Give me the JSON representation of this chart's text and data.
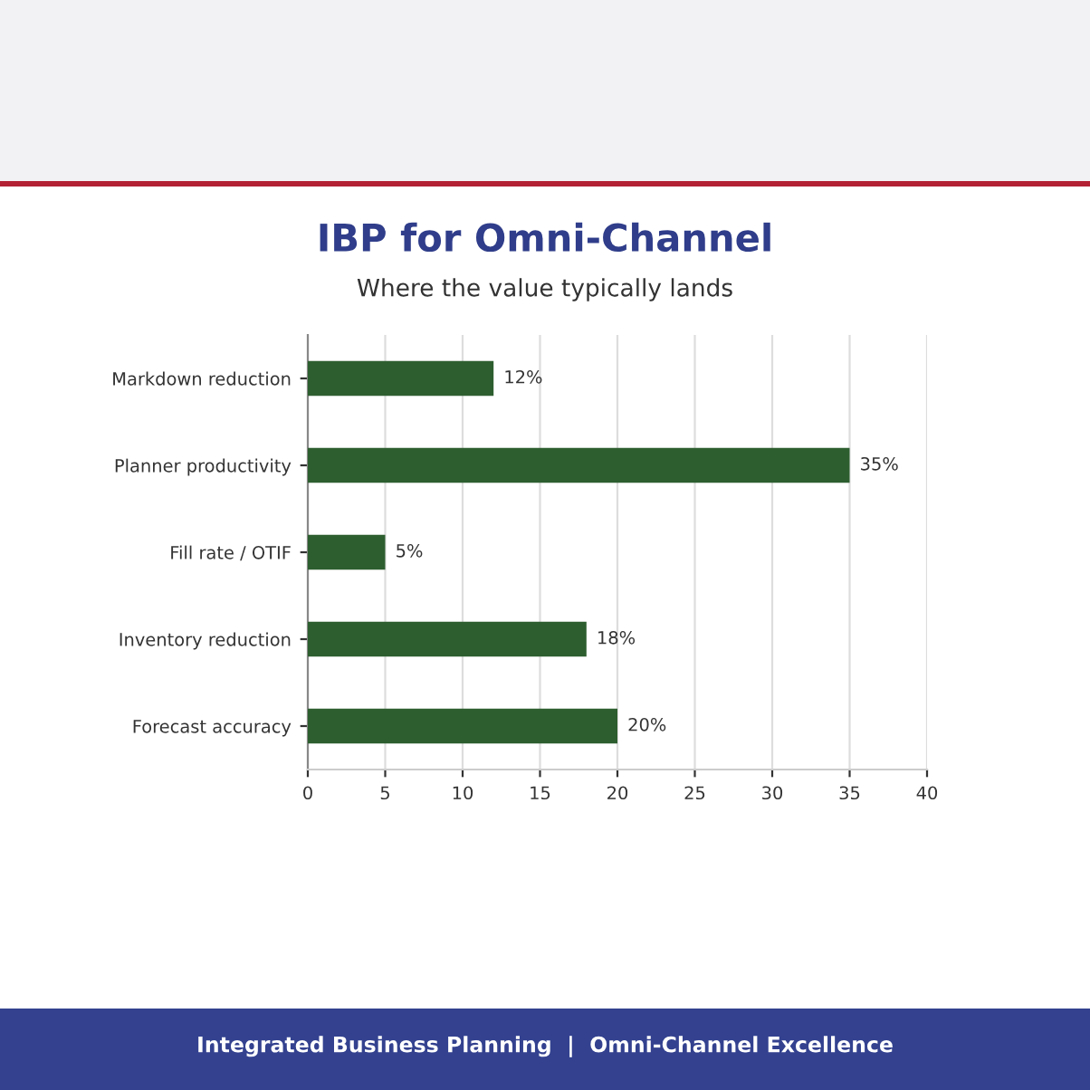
{
  "chart_data": {
    "type": "bar",
    "orientation": "horizontal",
    "title": "IBP for Omni-Channel",
    "subtitle": "Where the value typically lands",
    "categories": [
      "Markdown reduction",
      "Planner productivity",
      "Fill rate / OTIF",
      "Inventory reduction",
      "Forecast accuracy"
    ],
    "values": [
      12,
      35,
      5,
      18,
      20
    ],
    "value_labels": [
      "12%",
      "35%",
      "5%",
      "18%",
      "20%"
    ],
    "color": "#2d5e2f",
    "xlim": [
      0,
      40
    ],
    "xticks": [
      0,
      5,
      10,
      15,
      20,
      25,
      30,
      35,
      40
    ],
    "grid": "x",
    "annotations": [
      "Integrated Business Planning  |  Omni-Channel Excellence"
    ]
  }
}
